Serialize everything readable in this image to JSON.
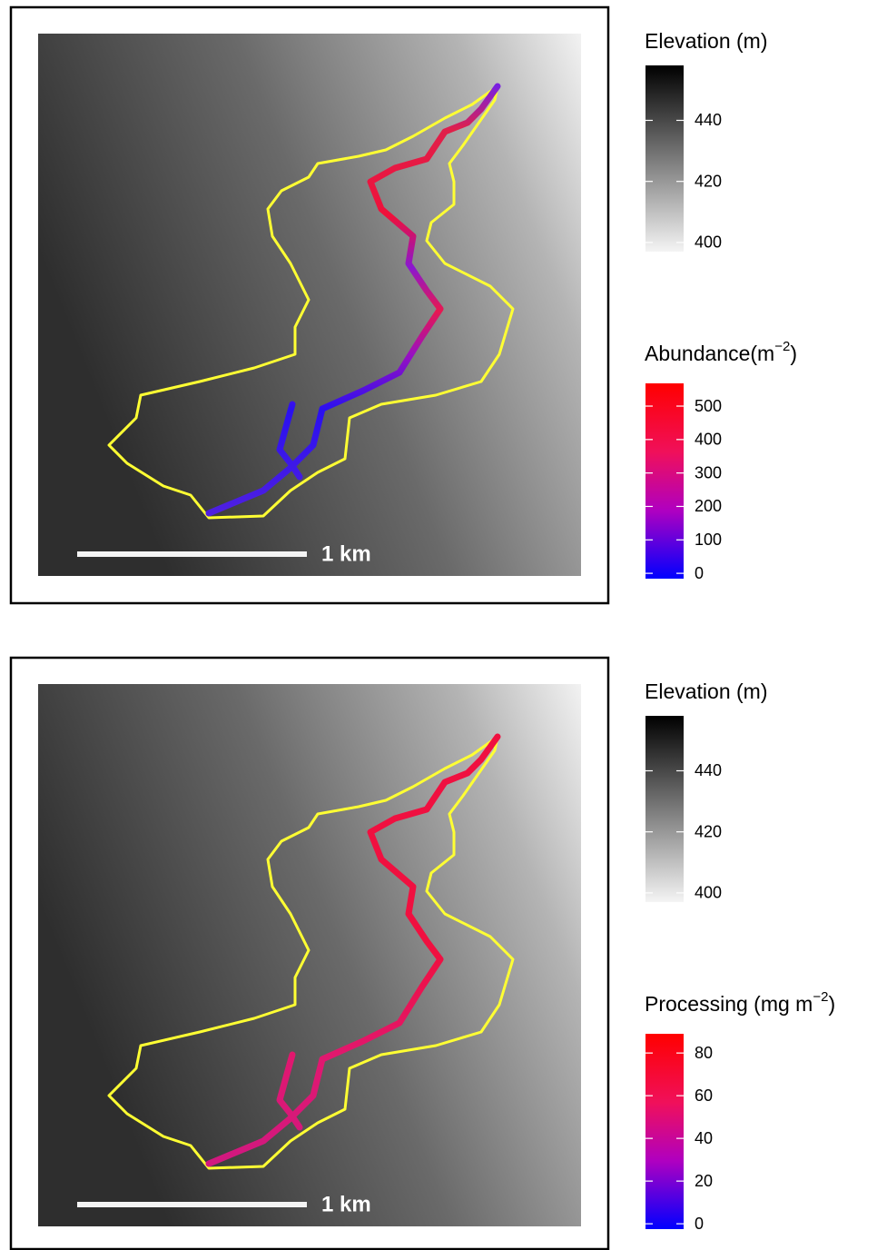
{
  "panels": [
    {
      "elevation_legend": {
        "title": "Elevation (m)",
        "range": [
          397,
          458
        ],
        "ticks": [
          400,
          420,
          440
        ]
      },
      "stream_legend": {
        "title": "Abundance(m",
        "title_superscript": "−2",
        "title_end": ")",
        "range": [
          -16,
          568
        ],
        "ticks": [
          0,
          100,
          200,
          300,
          400,
          500
        ]
      },
      "scale_bar": "1 km"
    },
    {
      "elevation_legend": {
        "title": "Elevation (m)",
        "range": [
          397,
          458
        ],
        "ticks": [
          400,
          420,
          440
        ]
      },
      "stream_legend": {
        "title": "Processing (mg m",
        "title_superscript": "−2",
        "title_end": ")",
        "range": [
          -2.5,
          89
        ],
        "ticks": [
          0,
          20,
          40,
          60,
          80
        ]
      },
      "scale_bar": "1 km"
    }
  ]
}
